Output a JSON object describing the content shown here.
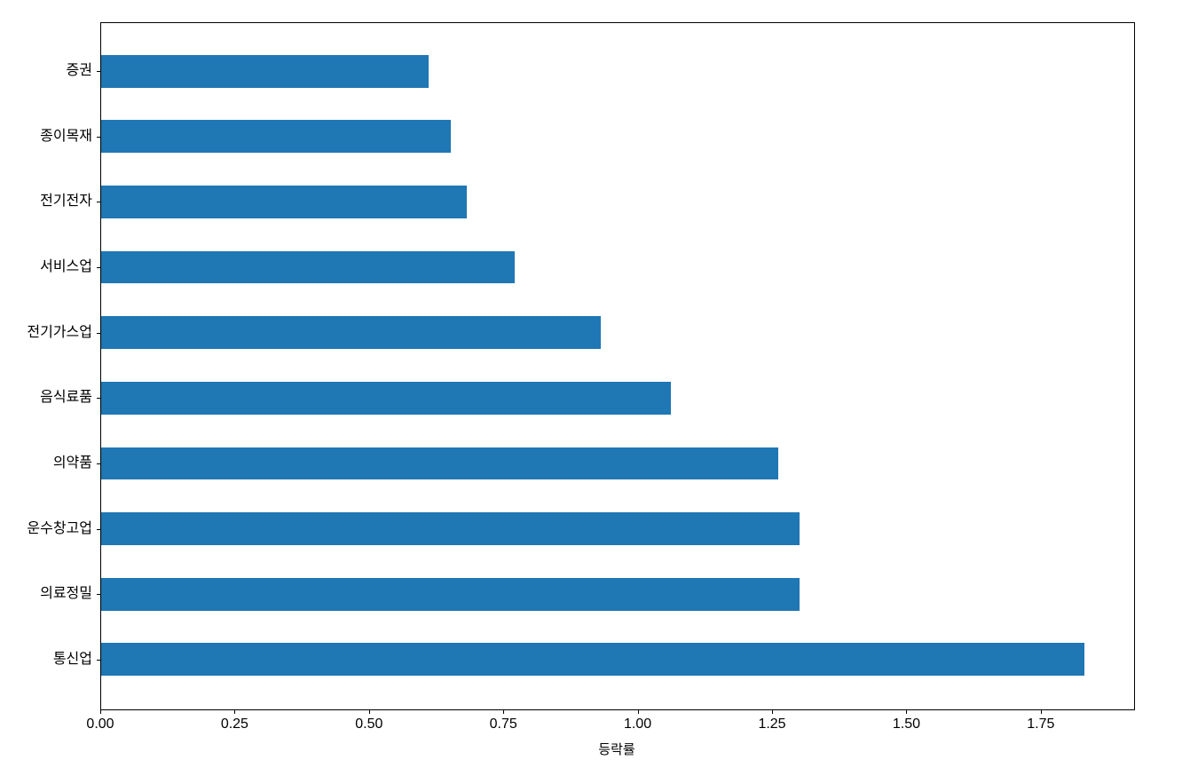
{
  "chart_data": {
    "type": "bar",
    "orientation": "horizontal",
    "title": "",
    "xlabel": "등락률",
    "ylabel": "",
    "categories": [
      "증권",
      "종이목재",
      "전기전자",
      "서비스업",
      "전기가스업",
      "음식료품",
      "의약품",
      "운수창고업",
      "의료정밀",
      "통신업"
    ],
    "values": [
      0.61,
      0.65,
      0.68,
      0.77,
      0.93,
      1.06,
      1.26,
      1.3,
      1.3,
      1.83
    ],
    "categories_order": "top-to-bottom",
    "xticks": [
      {
        "value": 0.0,
        "label": "0.00"
      },
      {
        "value": 0.25,
        "label": "0.25"
      },
      {
        "value": 0.5,
        "label": "0.50"
      },
      {
        "value": 0.75,
        "label": "0.75"
      },
      {
        "value": 1.0,
        "label": "1.00"
      },
      {
        "value": 1.25,
        "label": "1.25"
      },
      {
        "value": 1.5,
        "label": "1.50"
      },
      {
        "value": 1.75,
        "label": "1.75"
      }
    ],
    "xlim": [
      0,
      1.922
    ],
    "bar_color": "#1f77b4",
    "axis_color": "#000000",
    "grid": false,
    "legend_position": "none"
  }
}
